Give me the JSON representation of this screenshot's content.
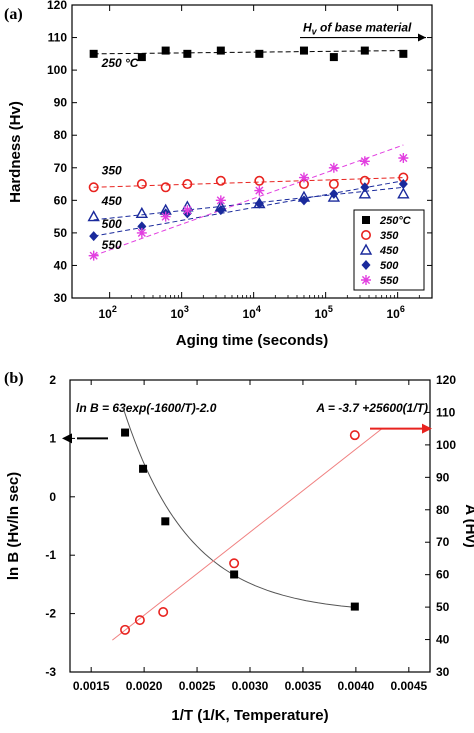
{
  "chart_data": [
    {
      "panel_label": "(a)",
      "type": "scatter",
      "xlabel": "Aging time (seconds)",
      "ylabel": "Hardness (Hv)",
      "x_scale": "log",
      "xlim": [
        30,
        3000000
      ],
      "ylim": [
        30,
        120
      ],
      "y_ticks": [
        30,
        40,
        50,
        60,
        70,
        80,
        90,
        100,
        110,
        120
      ],
      "x_ticks": [
        {
          "value": 100,
          "base": "10",
          "exp": "2"
        },
        {
          "value": 1000,
          "base": "10",
          "exp": "3"
        },
        {
          "value": 10000,
          "base": "10",
          "exp": "4"
        },
        {
          "value": 100000,
          "base": "10",
          "exp": "5"
        },
        {
          "value": 1000000,
          "base": "10",
          "exp": "6"
        }
      ],
      "annotations": {
        "base_material_pre": "H",
        "base_material_sub": "v",
        "base_material_post": " of base material",
        "base_material_value": 110,
        "labels": [
          {
            "text": "250 °C",
            "x": 100,
            "y": 101
          },
          {
            "text": "350",
            "x": 100,
            "y": 68
          },
          {
            "text": "450",
            "x": 100,
            "y": 58.5
          },
          {
            "text": "500",
            "x": 100,
            "y": 51.5
          },
          {
            "text": "550",
            "x": 100,
            "y": 45
          }
        ]
      },
      "series": [
        {
          "name": "250°C",
          "marker": "square",
          "color": "#000000",
          "x": [
            60,
            280,
            600,
            1200,
            3500,
            12000,
            50000,
            130000,
            350000,
            1200000
          ],
          "y": [
            105,
            104,
            106,
            105,
            106,
            105,
            106,
            104,
            106,
            105
          ],
          "fit": [
            [
              60,
              105
            ],
            [
              1200000,
              106
            ]
          ]
        },
        {
          "name": "350",
          "marker": "circle",
          "color": "#e8231f",
          "x": [
            60,
            280,
            600,
            1200,
            3500,
            12000,
            50000,
            130000,
            350000,
            1200000
          ],
          "y": [
            64,
            65,
            64,
            65,
            66,
            66,
            65,
            65,
            66,
            67
          ],
          "fit": [
            [
              60,
              64
            ],
            [
              1200000,
              67
            ]
          ]
        },
        {
          "name": "450",
          "marker": "triangle",
          "color": "#1a2a9c",
          "x": [
            60,
            280,
            600,
            1200,
            3500,
            12000,
            50000,
            130000,
            350000,
            1200000
          ],
          "y": [
            55,
            56,
            57,
            58,
            58,
            59,
            61,
            61,
            62,
            62
          ],
          "fit": [
            [
              60,
              54
            ],
            [
              1200000,
              64
            ]
          ]
        },
        {
          "name": "500",
          "marker": "diamond",
          "color": "#1a2a9c",
          "x": [
            60,
            280,
            600,
            1200,
            3500,
            12000,
            50000,
            130000,
            350000,
            1200000
          ],
          "y": [
            49,
            52,
            56,
            56,
            57,
            59,
            60,
            62,
            64,
            65
          ],
          "fit": [
            [
              60,
              49
            ],
            [
              1200000,
              66
            ]
          ]
        },
        {
          "name": "550",
          "marker": "asterisk",
          "color": "#e23fe0",
          "x": [
            60,
            280,
            600,
            1200,
            3500,
            12000,
            50000,
            130000,
            350000,
            1200000
          ],
          "y": [
            43,
            50,
            55,
            57,
            60,
            63,
            67,
            70,
            72,
            73
          ],
          "fit": [
            [
              60,
              43
            ],
            [
              1200000,
              77
            ]
          ]
        }
      ],
      "legend_position": "bottom-right"
    },
    {
      "panel_label": "(b)",
      "type": "scatter",
      "xlabel": "1/T (1/K, Temperature)",
      "ylabel_left": "ln B (Hv/ln sec)",
      "ylabel_right": "A (Hv)",
      "xlim": [
        0.0013,
        0.0047
      ],
      "x_ticks": [
        "0.0015",
        "0.0020",
        "0.0025",
        "0.0030",
        "0.0035",
        "0.0040",
        "0.0045"
      ],
      "ylim_left": [
        -3,
        2
      ],
      "y_ticks_left": [
        "-3",
        "-2",
        "-1",
        "0",
        "1",
        "2"
      ],
      "ylim_right": [
        30,
        120
      ],
      "y_ticks_right": [
        "30",
        "40",
        "50",
        "60",
        "70",
        "80",
        "90",
        "100",
        "110",
        "120"
      ],
      "equation_left": "ln B = 63exp(-1600/T)-2.0",
      "equation_right": "A = -3.7 +25600(1/T)",
      "series": [
        {
          "name": "ln B",
          "marker": "square",
          "color": "#000000",
          "axis": "left",
          "x": [
            0.00182,
            0.00199,
            0.0022,
            0.00285,
            0.00399
          ],
          "y": [
            1.1,
            0.48,
            -0.42,
            -1.33,
            -1.88
          ]
        },
        {
          "name": "A",
          "marker": "circle",
          "color": "#e8231f",
          "axis": "right",
          "x": [
            0.00182,
            0.00196,
            0.00218,
            0.00285,
            0.00399
          ],
          "y": [
            43,
            46,
            48.5,
            63.5,
            103
          ]
        }
      ],
      "fits": [
        {
          "axis": "left",
          "color": "#555555",
          "x_range": [
            0.0018,
            0.00401
          ]
        },
        {
          "axis": "right",
          "color": "#f08080",
          "x_range": [
            0.0017,
            0.00425
          ]
        }
      ]
    }
  ]
}
